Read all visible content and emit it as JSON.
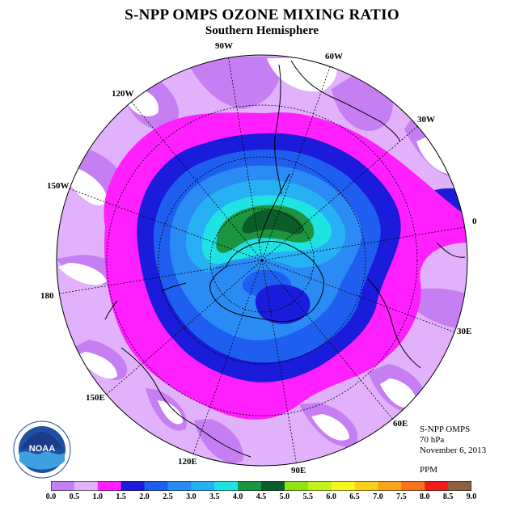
{
  "title": "S-NPP OMPS OZONE MIXING RATIO",
  "subtitle": "Southern Hemisphere",
  "longitude_labels": [
    "90W",
    "60W",
    "30W",
    "0",
    "30E",
    "60E",
    "90E",
    "120E",
    "150E",
    "180",
    "150W",
    "120W"
  ],
  "info": {
    "instrument": "S-NPP OMPS",
    "level": "70 hPa",
    "date": "November 6, 2013",
    "units": "PPM"
  },
  "logo": {
    "text": "NOAA",
    "icon": "noaa-logo"
  },
  "colorbar": {
    "ticks": [
      "0.0",
      "0.5",
      "1.0",
      "1.5",
      "2.0",
      "2.5",
      "3.0",
      "3.5",
      "4.0",
      "4.5",
      "5.0",
      "5.5",
      "6.0",
      "6.5",
      "7.0",
      "7.5",
      "8.0",
      "8.5",
      "9.0"
    ],
    "colors": [
      "#c57ff2",
      "#e1b1fb",
      "#ff1fff",
      "#1b1bdb",
      "#1f5ff0",
      "#2b8bf4",
      "#27b1f5",
      "#1fe3e3",
      "#1c9440",
      "#0b5e2a",
      "#8de313",
      "#c1f21b",
      "#f5f71d",
      "#f7cf1c",
      "#f7a61a",
      "#f7721c",
      "#f21b1b",
      "#8e6040"
    ]
  },
  "map_data": {
    "projection": "polar-stereographic-south",
    "field": "ozone mixing ratio",
    "units": "PPM",
    "level_hpa": 70,
    "date": "November 6, 2013",
    "features": [
      "polar vortex ozone hole over Antarctica (1.5-3.5 ppm)",
      "maximum 4.5-5.0 ppm near Weddell Sea / Antarctic Peninsula",
      "collar of 1.0-1.5 ppm around vortex",
      "0.0-1.0 ppm at midlatitudes"
    ]
  }
}
